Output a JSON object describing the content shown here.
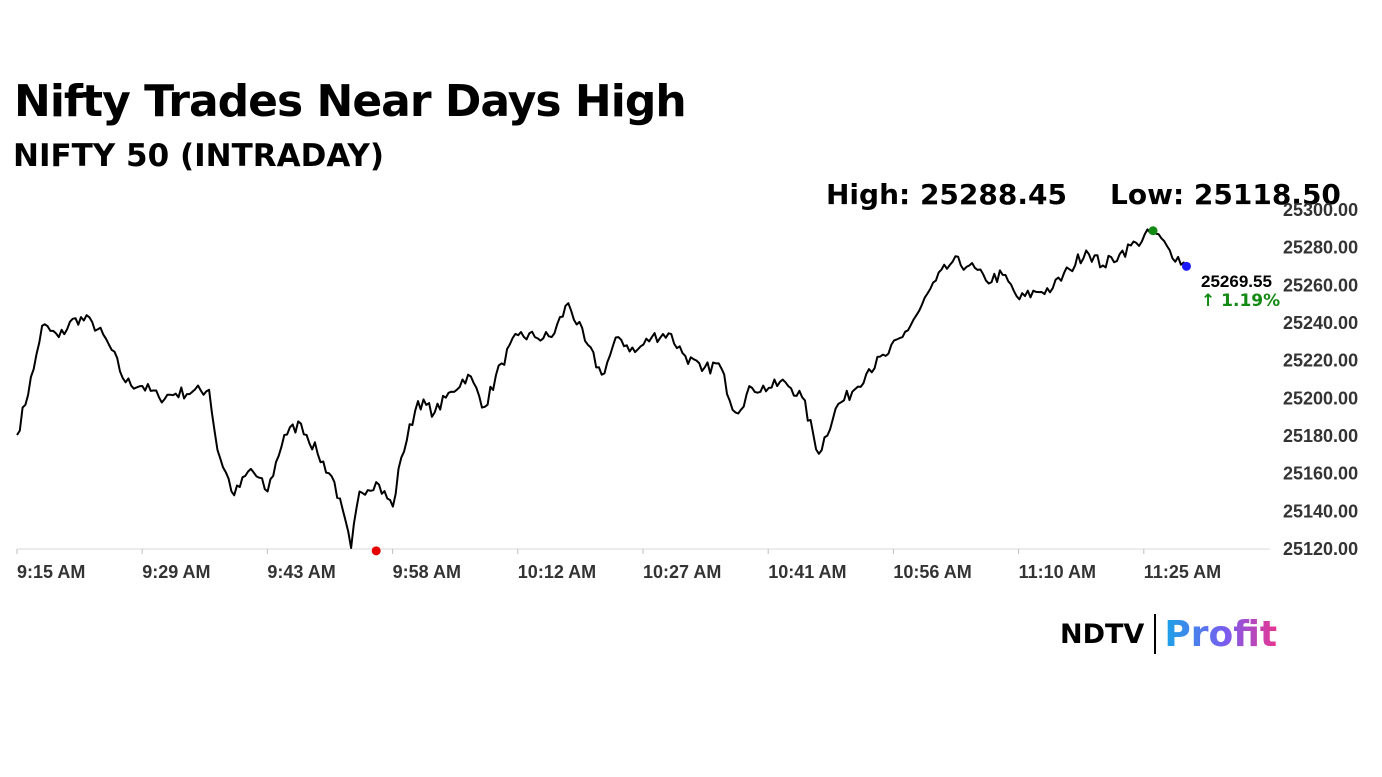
{
  "title": "Nifty Trades Near Days High",
  "subtitle": "NIFTY 50 (INTRADAY)",
  "high_label": "High: 25288.45",
  "low_label": "Low: 25118.50",
  "last_value": "25269.55",
  "change": "↑ 1.19%",
  "brand": {
    "left": "NDTV",
    "right": "Profit"
  },
  "colors": {
    "line": "#000000",
    "low_marker": "#e60000",
    "high_marker": "#138a13",
    "last_marker": "#1a1aff",
    "change": "#138a13",
    "axis": "#d9d9d9"
  },
  "chart_data": {
    "type": "line",
    "title": "NIFTY 50 (INTRADAY)",
    "ylim": [
      25120,
      25300
    ],
    "yticks": [
      "25300.00",
      "25280.00",
      "25260.00",
      "25240.00",
      "25220.00",
      "25200.00",
      "25180.00",
      "25160.00",
      "25140.00",
      "25120.00"
    ],
    "xticks": [
      "9:15 AM",
      "9:29 AM",
      "9:43 AM",
      "9:58 AM",
      "10:12 AM",
      "10:27 AM",
      "10:41 AM",
      "10:56 AM",
      "11:10 AM",
      "11:25 AM"
    ],
    "x_minutes": [
      0,
      2,
      3,
      5,
      7,
      9,
      11,
      13,
      15,
      17,
      19,
      21,
      23,
      24,
      26,
      28,
      30,
      32,
      34,
      36,
      38,
      40,
      41,
      43,
      45,
      46,
      48,
      50,
      52,
      54,
      56,
      58,
      60,
      62,
      64,
      66,
      68,
      70,
      72,
      74,
      76,
      78,
      80,
      82,
      84,
      86,
      88,
      90,
      92,
      94,
      96,
      98,
      100,
      102,
      104,
      106,
      108,
      110,
      112,
      114,
      116,
      118,
      120,
      122,
      124,
      126,
      128,
      130,
      132,
      134,
      136,
      138,
      140
    ],
    "values": [
      25180,
      25215,
      25238,
      25232,
      25242,
      25240,
      25228,
      25208,
      25206,
      25200,
      25202,
      25203,
      25204,
      25172,
      25148,
      25162,
      25150,
      25180,
      25186,
      25170,
      25155,
      25120,
      25150,
      25155,
      25142,
      25168,
      25198,
      25192,
      25203,
      25212,
      25195,
      25218,
      25233,
      25232,
      25232,
      25250,
      25230,
      25212,
      25232,
      25224,
      25232,
      25234,
      25222,
      25214,
      25218,
      25192,
      25205,
      25205,
      25208,
      25200,
      25170,
      25194,
      25203,
      25215,
      25222,
      25232,
      25246,
      25262,
      25272,
      25270,
      25262,
      25265,
      25252,
      25256,
      25258,
      25268,
      25278,
      25270,
      25276,
      25282,
      25288,
      25278,
      25269.55
    ],
    "high": {
      "minute": 136,
      "value": 25288.45
    },
    "low": {
      "minute": 43,
      "value": 25118.5
    },
    "last": {
      "minute": 140,
      "value": 25269.55
    }
  }
}
